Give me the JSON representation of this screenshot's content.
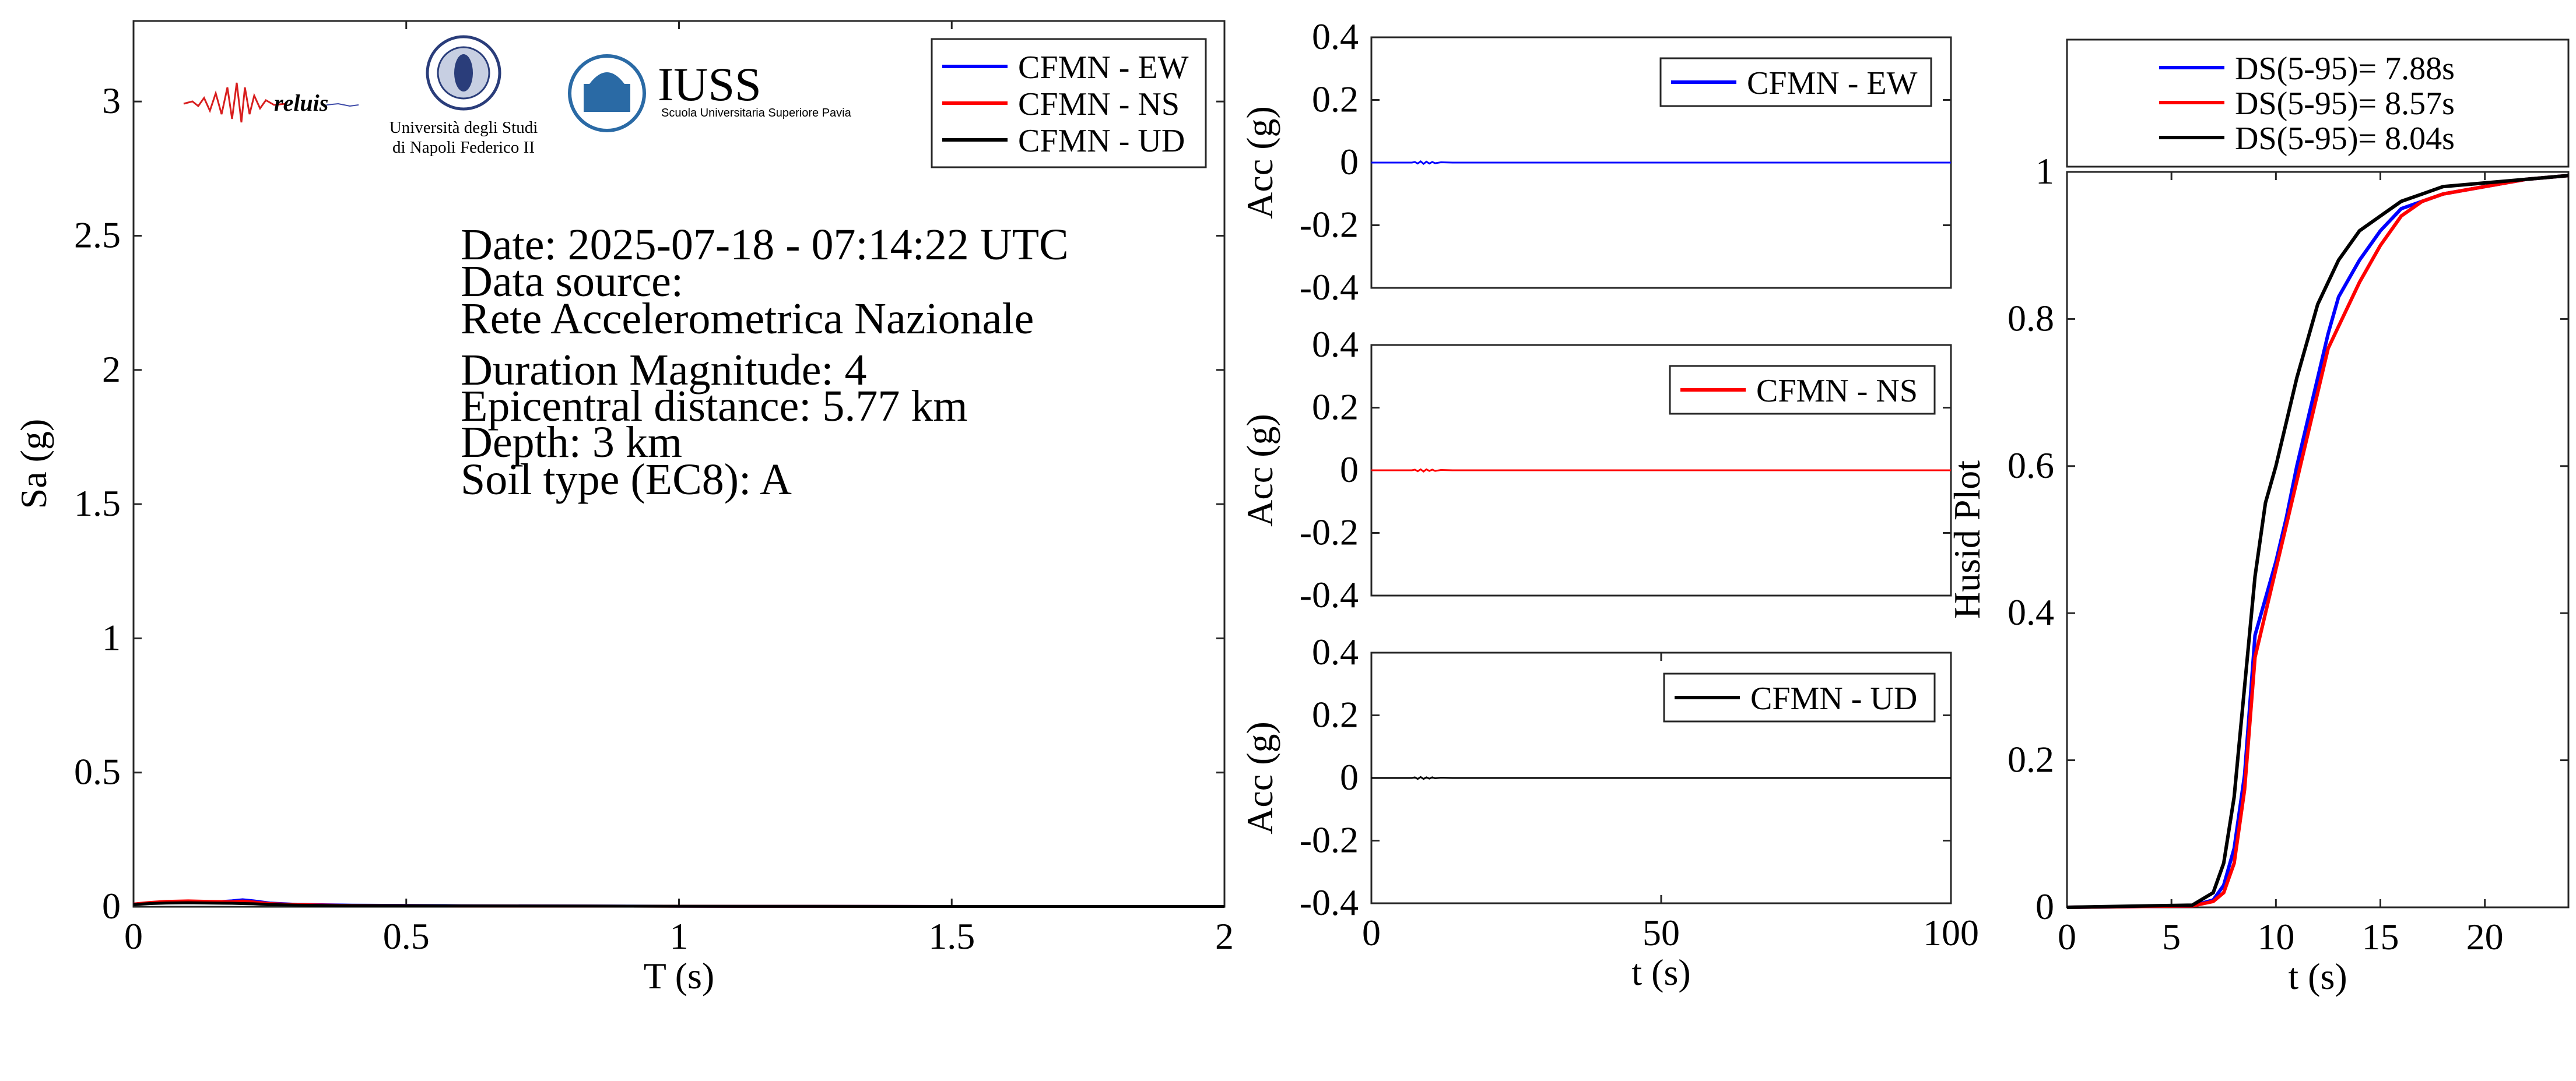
{
  "logos": {
    "reluis": "reluis",
    "unina": [
      "Università degli Studi",
      "di Napoli Federico II"
    ],
    "iuss": "IUSS",
    "iuss_sub": "Scuola Universitaria Superiore Pavia"
  },
  "info": {
    "date": "Date: 2025-07-18 - 07:14:22 UTC",
    "source_label": "Data source:",
    "source": "Rete Accelerometrica Nazionale",
    "magnitude": "Duration Magnitude: 4",
    "distance": "Epicentral distance: 5.77 km",
    "depth": "Depth: 3 km",
    "soil": "Soil type (EC8): A"
  },
  "colors": {
    "ew": "#0000ff",
    "ns": "#ff0000",
    "ud": "#000000"
  },
  "chart_data": [
    {
      "id": "spectrum",
      "type": "line",
      "xlabel": "T (s)",
      "ylabel": "Sa (g)",
      "xlim": [
        0,
        2
      ],
      "ylim": [
        0,
        3.3
      ],
      "xticks": [
        0,
        0.5,
        1,
        1.5,
        2
      ],
      "xticklabels": [
        "0",
        "0.5",
        "1",
        "1.5",
        "2"
      ],
      "yticks": [
        0,
        0.5,
        1,
        1.5,
        2,
        2.5,
        3
      ],
      "yticklabels": [
        "0",
        "0.5",
        "1",
        "1.5",
        "2",
        "2.5",
        "3"
      ],
      "legend_position": "top-right",
      "series": [
        {
          "name": "CFMN - EW",
          "color": "#0000ff",
          "x": [
            0,
            0.03,
            0.06,
            0.1,
            0.14,
            0.18,
            0.2,
            0.22,
            0.25,
            0.3,
            0.4,
            0.6,
            1.0,
            1.5,
            2.0
          ],
          "y": [
            0.01,
            0.015,
            0.018,
            0.02,
            0.017,
            0.022,
            0.026,
            0.022,
            0.014,
            0.009,
            0.006,
            0.004,
            0.002,
            0.001,
            0.001
          ]
        },
        {
          "name": "CFMN - NS",
          "color": "#ff0000",
          "x": [
            0,
            0.03,
            0.06,
            0.1,
            0.14,
            0.18,
            0.2,
            0.22,
            0.25,
            0.3,
            0.4,
            0.6,
            1.0,
            1.5,
            2.0
          ],
          "y": [
            0.01,
            0.016,
            0.02,
            0.022,
            0.02,
            0.019,
            0.021,
            0.018,
            0.012,
            0.008,
            0.005,
            0.003,
            0.002,
            0.001,
            0.001
          ]
        },
        {
          "name": "CFMN - UD",
          "color": "#000000",
          "x": [
            0,
            0.03,
            0.06,
            0.1,
            0.14,
            0.18,
            0.2,
            0.22,
            0.25,
            0.3,
            0.4,
            0.6,
            1.0,
            1.5,
            2.0
          ],
          "y": [
            0.008,
            0.012,
            0.014,
            0.015,
            0.014,
            0.013,
            0.012,
            0.011,
            0.008,
            0.006,
            0.004,
            0.003,
            0.002,
            0.001,
            0.001
          ]
        }
      ]
    },
    {
      "id": "acc-ew",
      "type": "line",
      "xlabel": "",
      "ylabel": "Acc (g)",
      "xlim": [
        0,
        100
      ],
      "ylim": [
        -0.4,
        0.4
      ],
      "yticks": [
        0.4,
        0.2,
        0,
        -0.2,
        -0.4
      ],
      "yticklabels": [
        "0.4",
        "0.2",
        "0",
        "-0.2",
        "-0.4"
      ],
      "legend_position": "top-right",
      "series": [
        {
          "name": "CFMN - EW",
          "color": "#0000ff",
          "x": [
            0,
            7,
            7.5,
            8,
            8.5,
            9,
            9.5,
            10,
            10.5,
            11,
            12,
            14,
            20,
            100
          ],
          "y": [
            0,
            0,
            0.002,
            -0.003,
            0.004,
            -0.004,
            0.003,
            -0.003,
            0.002,
            -0.002,
            0.001,
            0,
            0,
            0
          ]
        }
      ]
    },
    {
      "id": "acc-ns",
      "type": "line",
      "xlabel": "",
      "ylabel": "Acc (g)",
      "xlim": [
        0,
        100
      ],
      "ylim": [
        -0.4,
        0.4
      ],
      "yticks": [
        0.4,
        0.2,
        0,
        -0.2,
        -0.4
      ],
      "yticklabels": [
        "0.4",
        "0.2",
        "0",
        "-0.2",
        "-0.4"
      ],
      "legend_position": "top-right",
      "series": [
        {
          "name": "CFMN - NS",
          "color": "#ff0000",
          "x": [
            0,
            7,
            7.5,
            8,
            8.5,
            9,
            9.5,
            10,
            10.5,
            11,
            12,
            14,
            20,
            100
          ],
          "y": [
            0,
            0,
            0.002,
            -0.003,
            0.003,
            -0.004,
            0.003,
            -0.002,
            0.002,
            -0.002,
            0.001,
            0,
            0,
            0
          ]
        }
      ]
    },
    {
      "id": "acc-ud",
      "type": "line",
      "xlabel": "t (s)",
      "ylabel": "Acc (g)",
      "xlim": [
        0,
        100
      ],
      "ylim": [
        -0.4,
        0.4
      ],
      "xticks": [
        0,
        50,
        100
      ],
      "xticklabels": [
        "0",
        "50",
        "100"
      ],
      "yticks": [
        0.4,
        0.2,
        0,
        -0.2,
        -0.4
      ],
      "yticklabels": [
        "0.4",
        "0.2",
        "0",
        "-0.2",
        "-0.4"
      ],
      "legend_position": "top-right",
      "series": [
        {
          "name": "CFMN - UD",
          "color": "#000000",
          "x": [
            0,
            7,
            7.5,
            8,
            8.5,
            9,
            9.5,
            10,
            10.5,
            11,
            12,
            14,
            20,
            100
          ],
          "y": [
            0,
            0,
            0.002,
            -0.003,
            0.003,
            -0.003,
            0.002,
            -0.002,
            0.002,
            -0.001,
            0.001,
            0,
            0,
            0
          ]
        }
      ]
    },
    {
      "id": "husid",
      "type": "line",
      "xlabel": "t (s)",
      "ylabel": "Husid Plot",
      "xlim": [
        0,
        24
      ],
      "ylim": [
        0,
        1
      ],
      "xticks": [
        0,
        5,
        10,
        15,
        20
      ],
      "xticklabels": [
        "0",
        "5",
        "10",
        "15",
        "20"
      ],
      "yticks": [
        0,
        0.2,
        0.4,
        0.6,
        0.8,
        1
      ],
      "yticklabels": [
        "0",
        "0.2",
        "0.4",
        "0.6",
        "0.8",
        "1"
      ],
      "legend_position": "above",
      "series": [
        {
          "name": "DS(5-95)= 7.88s",
          "color": "#0000ff",
          "x": [
            0,
            6,
            7,
            7.5,
            8,
            8.5,
            9,
            9.5,
            10,
            10.5,
            11,
            11.5,
            12,
            12.5,
            13,
            14,
            15,
            16,
            17,
            18,
            20,
            22,
            24
          ],
          "y": [
            0,
            0.002,
            0.01,
            0.03,
            0.08,
            0.18,
            0.37,
            0.42,
            0.47,
            0.53,
            0.6,
            0.66,
            0.72,
            0.78,
            0.83,
            0.88,
            0.92,
            0.95,
            0.96,
            0.97,
            0.98,
            0.99,
            0.995
          ]
        },
        {
          "name": "DS(5-95)= 8.57s",
          "color": "#ff0000",
          "x": [
            0,
            6,
            7,
            7.5,
            8,
            8.5,
            9,
            9.5,
            10,
            10.5,
            11,
            11.5,
            12,
            12.5,
            13,
            14,
            15,
            16,
            17,
            18,
            20,
            22,
            24
          ],
          "y": [
            0,
            0.002,
            0.008,
            0.02,
            0.06,
            0.16,
            0.34,
            0.4,
            0.46,
            0.52,
            0.58,
            0.64,
            0.7,
            0.76,
            0.79,
            0.85,
            0.9,
            0.94,
            0.96,
            0.97,
            0.98,
            0.99,
            0.995
          ]
        },
        {
          "name": "DS(5-95)= 8.04s",
          "color": "#000000",
          "x": [
            0,
            6,
            7,
            7.5,
            8,
            8.5,
            9,
            9.5,
            10,
            10.5,
            11,
            11.5,
            12,
            12.5,
            13,
            14,
            15,
            16,
            17,
            18,
            20,
            22,
            24
          ],
          "y": [
            0,
            0.003,
            0.02,
            0.06,
            0.15,
            0.3,
            0.45,
            0.55,
            0.6,
            0.66,
            0.72,
            0.77,
            0.82,
            0.85,
            0.88,
            0.92,
            0.94,
            0.96,
            0.97,
            0.98,
            0.985,
            0.99,
            0.995
          ]
        }
      ]
    }
  ]
}
